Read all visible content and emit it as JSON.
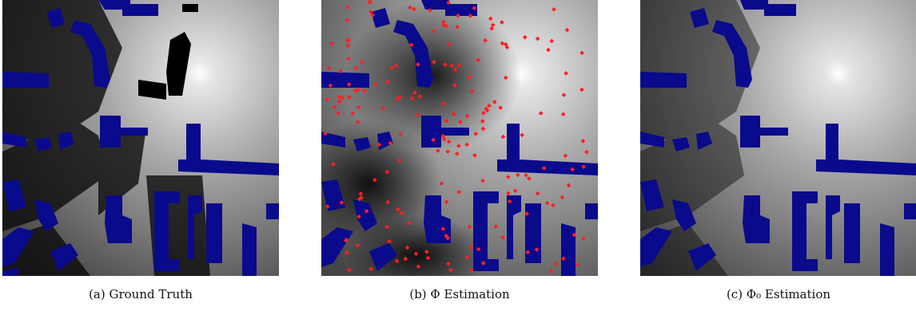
{
  "figure": {
    "panels": [
      {
        "id": "a",
        "caption": "(a) Ground Truth"
      },
      {
        "id": "b",
        "caption": "(b) Φ Estimation"
      },
      {
        "id": "c",
        "caption": "(c) Φ₀ Estimation"
      }
    ]
  },
  "colors": {
    "building": "#0a0a8c",
    "shadow": "#050505",
    "sample_point": "#ff2020",
    "transmitter_glow": "#ffffff",
    "background_gray": "#5a5a5a"
  }
}
